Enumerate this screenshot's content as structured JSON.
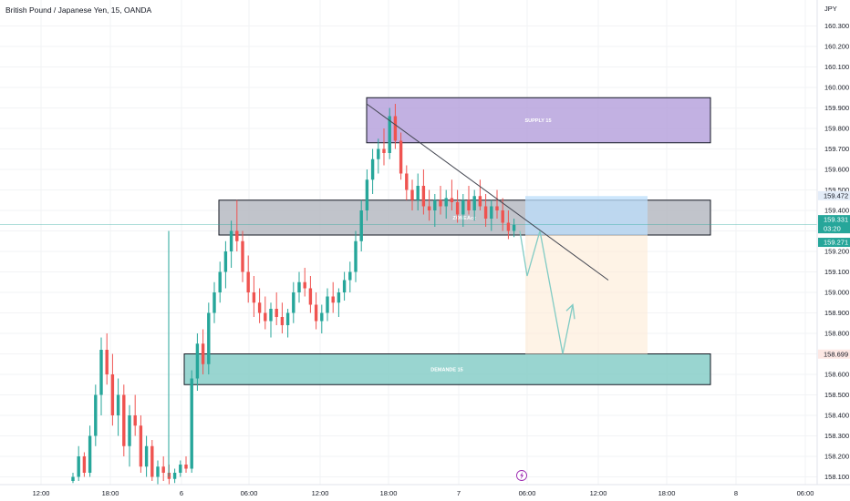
{
  "header": {
    "title": "British Pound / Japanese Yen, 15, OANDA",
    "currency": "JPY"
  },
  "chart_data": {
    "type": "candlestick",
    "symbol": "British Pound / Japanese Yen",
    "interval": "15",
    "source": "OANDA",
    "y_axis": {
      "unit": "JPY",
      "ticks": [
        "160.300",
        "160.200",
        "160.100",
        "160.000",
        "159.900",
        "159.800",
        "159.700",
        "159.600",
        "159.500",
        "159.400",
        "159.300",
        "159.200",
        "159.100",
        "159.000",
        "158.900",
        "158.800",
        "158.700",
        "158.600",
        "158.500",
        "158.400",
        "158.300",
        "158.200",
        "158.100"
      ],
      "range": [
        158.08,
        160.4
      ]
    },
    "x_axis": {
      "ticks": [
        "12:00",
        "18:00",
        "6",
        "06:00",
        "12:00",
        "18:00",
        "7",
        "06:00",
        "12:00",
        "18:00",
        "8",
        "06:00"
      ]
    },
    "zones": [
      {
        "name": "SUPPLY 15",
        "top": 159.95,
        "bottom": 159.73,
        "color": "#b39ddb"
      },
      {
        "name": "ZONE",
        "top": 159.45,
        "bottom": 159.28,
        "color": "#b2b5be"
      },
      {
        "name": "DEMANDE 15",
        "top": 158.7,
        "bottom": 158.55,
        "color": "#80cbc4"
      }
    ],
    "zone_label_extra": "Acc",
    "position": {
      "entry": 159.28,
      "stop": 159.47,
      "target": 158.699
    },
    "price_tags": [
      {
        "value": "159.472",
        "bg": "#e3ecf8",
        "color": "#131722"
      },
      {
        "value": "159.331",
        "bg": "#26a69a",
        "color": "#ffffff",
        "countdown": "03:20"
      },
      {
        "value": "159.271",
        "bg": "#26a69a",
        "color": "#ffffff"
      },
      {
        "value": "158.699",
        "bg": "#fde8e4",
        "color": "#131722"
      }
    ],
    "last_price": 159.331,
    "candles": [
      [
        158.08,
        158.12,
        158.07,
        158.1
      ],
      [
        158.1,
        158.25,
        158.08,
        158.2
      ],
      [
        158.2,
        158.22,
        158.1,
        158.12
      ],
      [
        158.12,
        158.35,
        158.1,
        158.3
      ],
      [
        158.3,
        158.55,
        158.25,
        158.5
      ],
      [
        158.5,
        158.78,
        158.4,
        158.72
      ],
      [
        158.72,
        158.8,
        158.55,
        158.6
      ],
      [
        158.6,
        158.7,
        158.35,
        158.4
      ],
      [
        158.4,
        158.58,
        158.3,
        158.5
      ],
      [
        158.5,
        158.55,
        158.2,
        158.25
      ],
      [
        158.25,
        158.45,
        158.15,
        158.4
      ],
      [
        158.4,
        158.5,
        158.3,
        158.35
      ],
      [
        158.35,
        158.4,
        158.12,
        158.15
      ],
      [
        158.15,
        158.3,
        158.1,
        158.25
      ],
      [
        158.25,
        158.28,
        158.08,
        158.1
      ],
      [
        158.1,
        158.18,
        158.06,
        158.15
      ],
      [
        158.15,
        158.2,
        158.08,
        158.12
      ],
      [
        158.12,
        158.16,
        158.06,
        158.09
      ],
      [
        158.09,
        158.14,
        158.07,
        158.12
      ],
      [
        158.12,
        158.18,
        158.1,
        158.16
      ],
      [
        158.16,
        158.2,
        158.12,
        158.14
      ],
      [
        158.14,
        158.62,
        158.12,
        158.58
      ],
      [
        158.58,
        158.8,
        158.52,
        158.75
      ],
      [
        158.75,
        158.82,
        158.6,
        158.65
      ],
      [
        158.65,
        158.95,
        158.6,
        158.9
      ],
      [
        158.9,
        159.05,
        158.85,
        159.0
      ],
      [
        159.0,
        159.15,
        158.95,
        159.1
      ],
      [
        159.1,
        159.25,
        159.02,
        159.2
      ],
      [
        159.2,
        159.35,
        159.12,
        159.3
      ],
      [
        159.3,
        159.45,
        159.2,
        159.25
      ],
      [
        159.25,
        159.3,
        159.05,
        159.1
      ],
      [
        159.1,
        159.18,
        158.95,
        159.0
      ],
      [
        159.0,
        159.08,
        158.88,
        158.95
      ],
      [
        158.95,
        159.02,
        158.85,
        158.9
      ],
      [
        158.9,
        158.98,
        158.82,
        158.86
      ],
      [
        158.86,
        158.95,
        158.78,
        158.92
      ],
      [
        158.92,
        159.0,
        158.84,
        158.88
      ],
      [
        158.88,
        158.95,
        158.8,
        158.84
      ],
      [
        158.84,
        158.92,
        158.78,
        158.9
      ],
      [
        158.9,
        159.05,
        158.85,
        159.0
      ],
      [
        159.0,
        159.1,
        158.95,
        159.05
      ],
      [
        159.05,
        159.12,
        158.98,
        159.02
      ],
      [
        159.02,
        159.08,
        158.9,
        158.94
      ],
      [
        158.94,
        159.0,
        158.82,
        158.86
      ],
      [
        158.86,
        158.94,
        158.8,
        158.9
      ],
      [
        158.9,
        159.02,
        158.86,
        158.98
      ],
      [
        158.98,
        159.05,
        158.9,
        158.95
      ],
      [
        158.95,
        159.02,
        158.88,
        159.0
      ],
      [
        159.0,
        159.1,
        158.96,
        159.06
      ],
      [
        159.06,
        159.15,
        159.0,
        159.1
      ],
      [
        159.1,
        159.3,
        159.05,
        159.25
      ],
      [
        159.25,
        159.45,
        159.2,
        159.4
      ],
      [
        159.4,
        159.6,
        159.35,
        159.55
      ],
      [
        159.55,
        159.7,
        159.48,
        159.65
      ],
      [
        159.65,
        159.75,
        159.58,
        159.7
      ],
      [
        159.7,
        159.8,
        159.62,
        159.68
      ],
      [
        159.68,
        159.9,
        159.65,
        159.86
      ],
      [
        159.86,
        159.92,
        159.7,
        159.74
      ],
      [
        159.74,
        159.78,
        159.55,
        159.58
      ],
      [
        159.58,
        159.62,
        159.45,
        159.5
      ],
      [
        159.5,
        159.55,
        159.4,
        159.45
      ],
      [
        159.45,
        159.58,
        159.4,
        159.52
      ],
      [
        159.52,
        159.6,
        159.38,
        159.42
      ],
      [
        159.42,
        159.5,
        159.35,
        159.4
      ],
      [
        159.4,
        159.48,
        159.32,
        159.45
      ],
      [
        159.45,
        159.52,
        159.38,
        159.42
      ],
      [
        159.42,
        159.5,
        159.36,
        159.46
      ],
      [
        159.46,
        159.55,
        159.4,
        159.44
      ],
      [
        159.44,
        159.5,
        159.34,
        159.38
      ],
      [
        159.38,
        159.48,
        159.32,
        159.45
      ],
      [
        159.45,
        159.52,
        159.38,
        159.4
      ],
      [
        159.4,
        159.5,
        159.35,
        159.47
      ],
      [
        159.47,
        159.55,
        159.4,
        159.42
      ],
      [
        159.42,
        159.48,
        159.32,
        159.36
      ],
      [
        159.36,
        159.45,
        159.3,
        159.42
      ],
      [
        159.42,
        159.5,
        159.36,
        159.4
      ],
      [
        159.4,
        159.46,
        159.3,
        159.34
      ],
      [
        159.34,
        159.4,
        159.26,
        159.3
      ],
      [
        159.3,
        159.36,
        159.27,
        159.33
      ]
    ]
  }
}
